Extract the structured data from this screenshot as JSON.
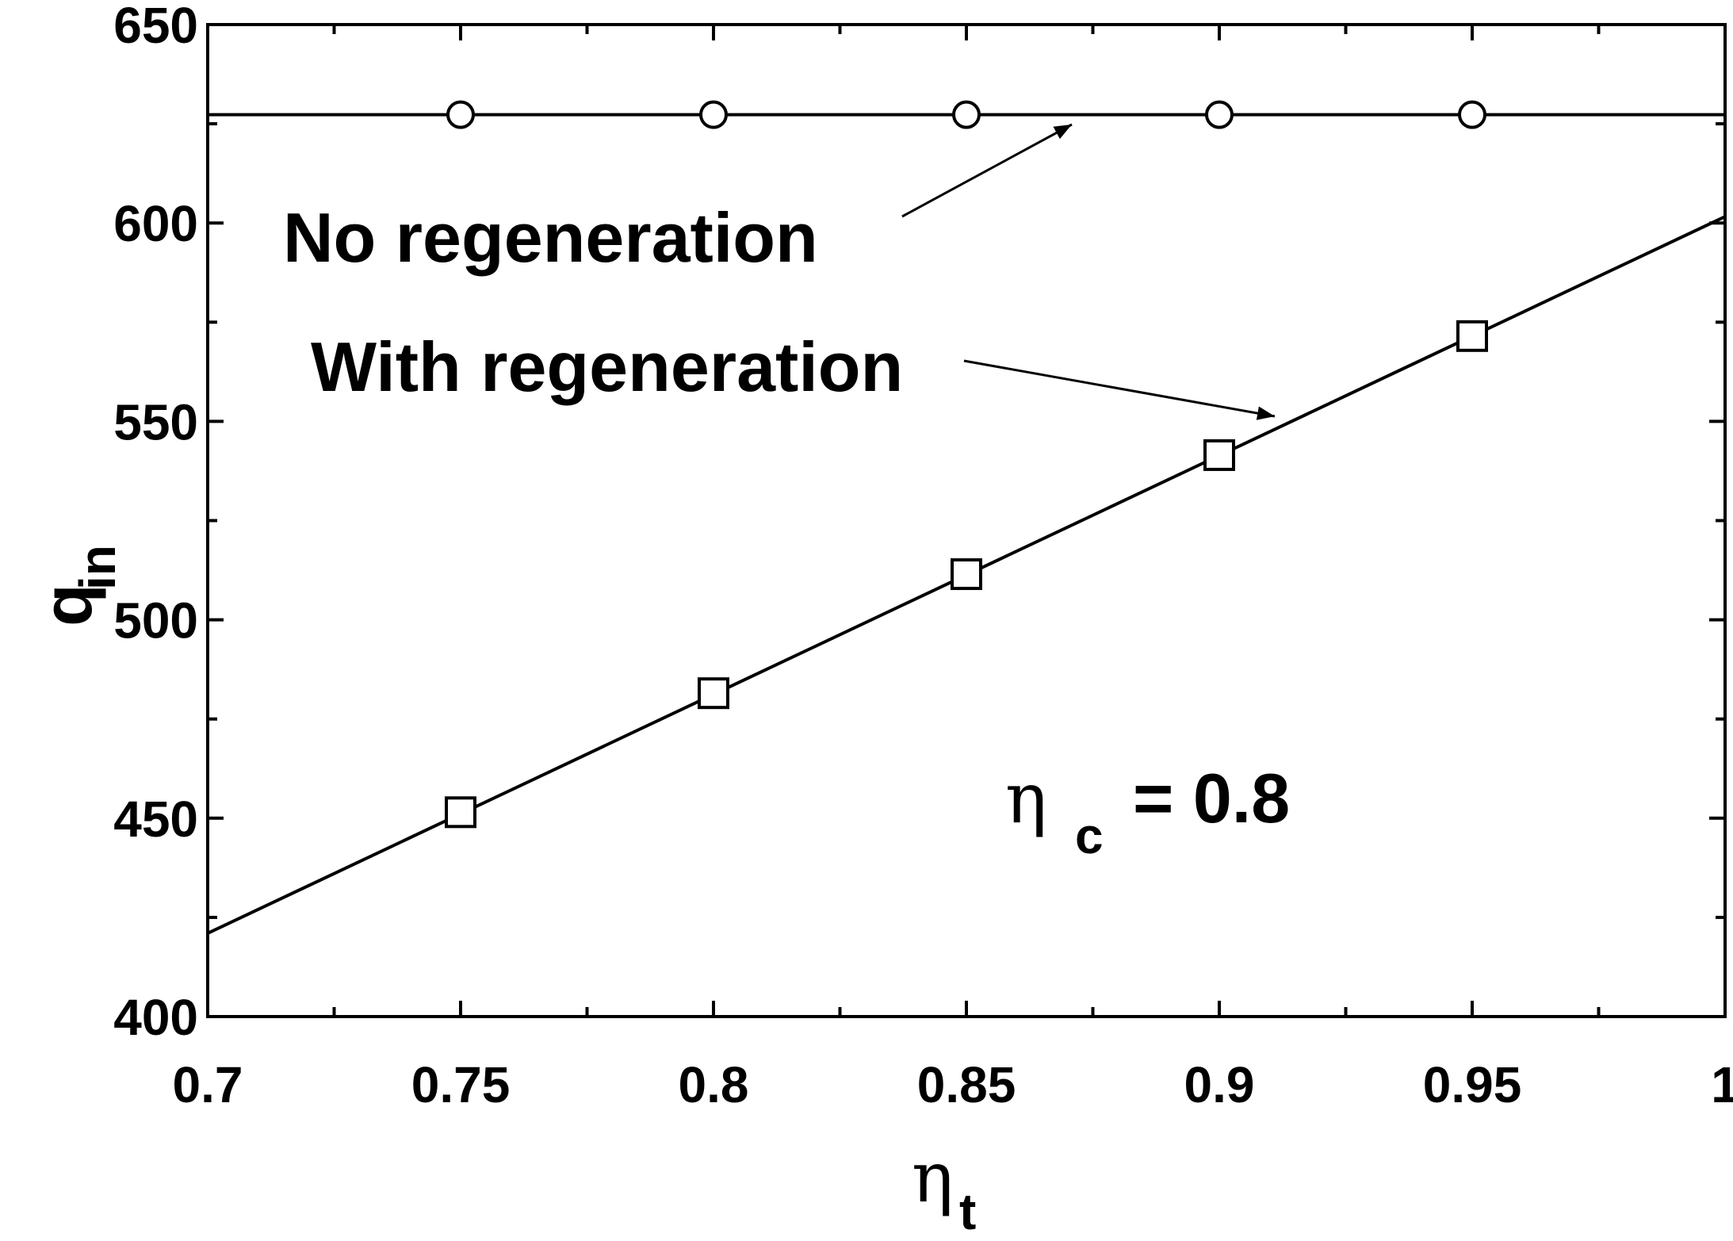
{
  "chart_data": {
    "type": "line",
    "x_label": {
      "symbol": "η",
      "subscript": "t"
    },
    "y_label": {
      "symbol": "q",
      "subscript": "in"
    },
    "annotation": {
      "symbol": "η",
      "subscript": "c",
      "text": "= 0.8"
    },
    "xlim": [
      0.7,
      1
    ],
    "ylim": [
      400,
      650
    ],
    "xticks": [
      0.7,
      0.75,
      0.8,
      0.85,
      0.9,
      0.95,
      1
    ],
    "yticks": [
      400,
      450,
      500,
      550,
      600,
      650
    ],
    "xminor_ticks": [
      0.725,
      0.775,
      0.825,
      0.875,
      0.925,
      0.975
    ],
    "yminor_ticks": [
      425,
      475,
      525,
      575,
      625
    ],
    "color": "#000000",
    "series": [
      {
        "name": "No regeneration",
        "marker": "circle",
        "x": [
          0.75,
          0.8,
          0.85,
          0.9,
          0.95
        ],
        "values": [
          627.3,
          627.3,
          627.3,
          627.3,
          627.3
        ],
        "fit_x": [
          0.7,
          1
        ],
        "fit_values": [
          627.3,
          627.3
        ]
      },
      {
        "name": "With regeneration",
        "marker": "square",
        "x": [
          0.75,
          0.8,
          0.85,
          0.9,
          0.95
        ],
        "values": [
          451.5,
          481.5,
          511.5,
          541.5,
          571.5
        ],
        "fit_x": [
          0.7,
          1
        ],
        "fit_values": [
          421,
          601.6
        ]
      }
    ]
  }
}
